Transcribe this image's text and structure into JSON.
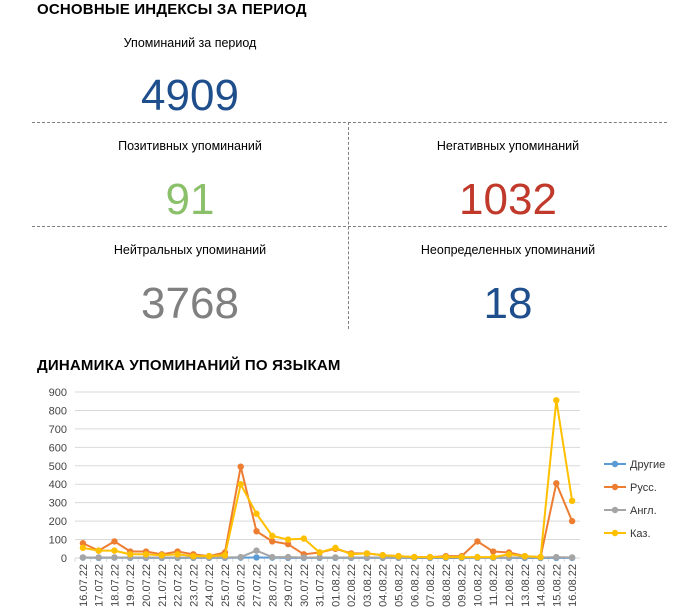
{
  "header": {
    "title": "ОСНОВНЫЕ ИНДЕКСЫ ЗА ПЕРИОД"
  },
  "indices": {
    "total": {
      "label": "Упоминаний за период",
      "value": "4909",
      "color": "#1f4e8c"
    },
    "positive": {
      "label": "Позитивных упоминаний",
      "value": "91",
      "color": "#8bc06a"
    },
    "negative": {
      "label": "Негативных упоминаний",
      "value": "1032",
      "color": "#c0392b"
    },
    "neutral": {
      "label": "Нейтральных упоминаний",
      "value": "3768",
      "color": "#808080"
    },
    "undefined": {
      "label": "Неопределенных упоминаний",
      "value": "18",
      "color": "#1f4e8c"
    }
  },
  "chart_title": "ДИНАМИКА УПОМИНАНИЙ ПО ЯЗЫКАМ",
  "chart_data": {
    "type": "line",
    "title": "ДИНАМИКА УПОМИНАНИЙ ПО ЯЗЫКАМ",
    "xlabel": "",
    "ylabel": "",
    "ylim": [
      0,
      900
    ],
    "yticks": [
      0,
      100,
      200,
      300,
      400,
      500,
      600,
      700,
      800,
      900
    ],
    "grid": true,
    "legend_position": "right",
    "categories": [
      "16.07.22",
      "17.07.22",
      "18.07.22",
      "19.07.22",
      "20.07.22",
      "21.07.22",
      "22.07.22",
      "23.07.22",
      "24.07.22",
      "25.07.22",
      "26.07.22",
      "27.07.22",
      "28.07.22",
      "29.07.22",
      "30.07.22",
      "31.07.22",
      "01.08.22",
      "02.08.22",
      "03.08.22",
      "04.08.22",
      "05.08.22",
      "06.08.22",
      "07.08.22",
      "08.08.22",
      "09.08.22",
      "10.08.22",
      "11.08.22",
      "12.08.22",
      "13.08.22",
      "14.08.22",
      "15.08.22",
      "16.08.22"
    ],
    "series": [
      {
        "name": "Другие",
        "color": "#5b9bd5",
        "values": [
          2,
          1,
          2,
          1,
          1,
          1,
          1,
          1,
          1,
          1,
          2,
          3,
          2,
          1,
          1,
          1,
          1,
          1,
          1,
          1,
          1,
          0,
          0,
          0,
          0,
          1,
          1,
          1,
          0,
          0,
          1,
          1
        ]
      },
      {
        "name": "Русс.",
        "color": "#ed7d31",
        "values": [
          80,
          40,
          90,
          35,
          35,
          20,
          35,
          20,
          10,
          30,
          495,
          145,
          90,
          75,
          20,
          30,
          50,
          25,
          25,
          15,
          10,
          5,
          5,
          10,
          10,
          90,
          35,
          30,
          10,
          5,
          405,
          200
        ]
      },
      {
        "name": "Англ.",
        "color": "#a5a5a5",
        "values": [
          3,
          3,
          3,
          3,
          3,
          3,
          3,
          3,
          3,
          3,
          5,
          40,
          5,
          5,
          3,
          3,
          3,
          3,
          3,
          3,
          3,
          3,
          3,
          3,
          3,
          3,
          3,
          3,
          3,
          3,
          5,
          3
        ]
      },
      {
        "name": "Каз.",
        "color": "#ffc000",
        "values": [
          55,
          40,
          40,
          20,
          20,
          15,
          20,
          10,
          10,
          15,
          400,
          240,
          120,
          100,
          105,
          30,
          55,
          20,
          25,
          15,
          10,
          5,
          5,
          5,
          5,
          5,
          5,
          20,
          10,
          5,
          855,
          310
        ]
      }
    ]
  }
}
